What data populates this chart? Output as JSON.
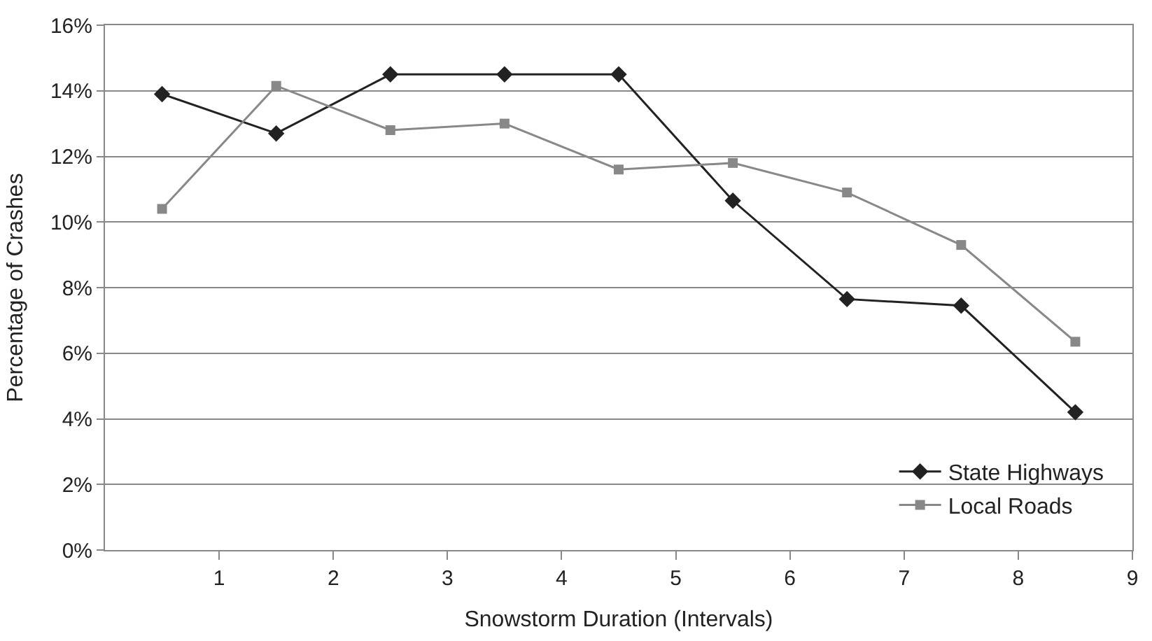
{
  "chart_data": {
    "type": "line",
    "xlabel": "Snowstorm Duration (Intervals)",
    "ylabel": "Percentage of Crashes",
    "x": [
      0.5,
      1.5,
      2.5,
      3.5,
      4.5,
      5.5,
      6.5,
      7.5,
      8.5
    ],
    "series": [
      {
        "name": "State Highways",
        "color": "#222222",
        "marker": "diamond",
        "values": [
          13.9,
          12.7,
          14.5,
          14.5,
          14.5,
          10.65,
          7.65,
          7.45,
          4.2
        ]
      },
      {
        "name": "Local Roads",
        "color": "#888888",
        "marker": "square",
        "values": [
          10.4,
          14.15,
          12.8,
          13.0,
          11.6,
          11.8,
          10.9,
          9.3,
          6.35
        ]
      }
    ],
    "xlim": [
      0,
      9
    ],
    "xticks": [
      1,
      2,
      3,
      4,
      5,
      6,
      7,
      8,
      9
    ],
    "ylim": [
      0,
      16
    ],
    "yticks": [
      {
        "value": 0,
        "label": "0%"
      },
      {
        "value": 2,
        "label": "2%"
      },
      {
        "value": 4,
        "label": "4%"
      },
      {
        "value": 6,
        "label": "6%"
      },
      {
        "value": 8,
        "label": "8%"
      },
      {
        "value": 10,
        "label": "10%"
      },
      {
        "value": 12,
        "label": "12%"
      },
      {
        "value": 14,
        "label": "14%"
      },
      {
        "value": 16,
        "label": "16%"
      }
    ],
    "grid": "y",
    "legend": "bottom right",
    "line_style": "solid"
  }
}
